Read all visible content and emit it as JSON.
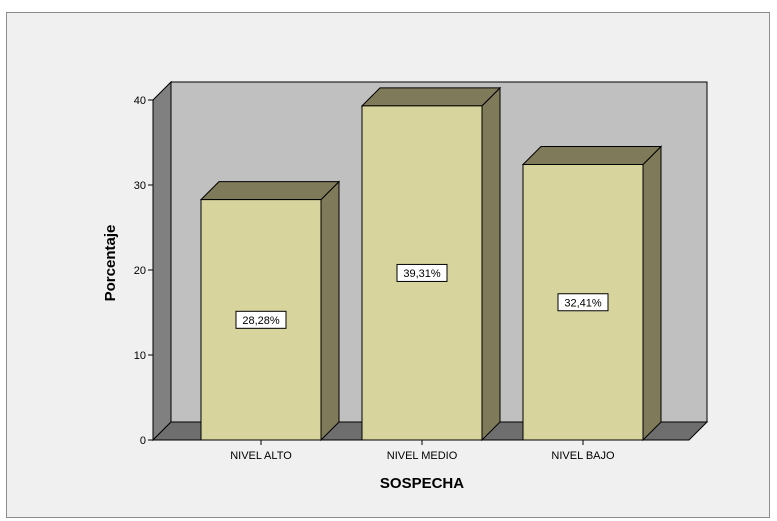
{
  "chart_data": {
    "type": "bar",
    "categories": [
      "NIVEL ALTO",
      "NIVEL MEDIO",
      "NIVEL BAJO"
    ],
    "values": [
      28.28,
      39.31,
      32.41
    ],
    "data_labels": [
      "28,28%",
      "39,31%",
      "32,41%"
    ],
    "xlabel": "SOSPECHA",
    "ylabel": "Porcentaje",
    "ylim": [
      0,
      40
    ],
    "yticks": [
      "0",
      "10",
      "20",
      "30",
      "40"
    ],
    "grid": false,
    "style": "3d",
    "colors": {
      "bar_front": "#d8d49e",
      "bar_side": "#7f7a5a",
      "bar_top": "#7f7a5a",
      "back_wall": "#c0c0c0",
      "side_wall": "#808080",
      "floor": "#6e6e6e",
      "background": "#f0f0f0"
    }
  }
}
